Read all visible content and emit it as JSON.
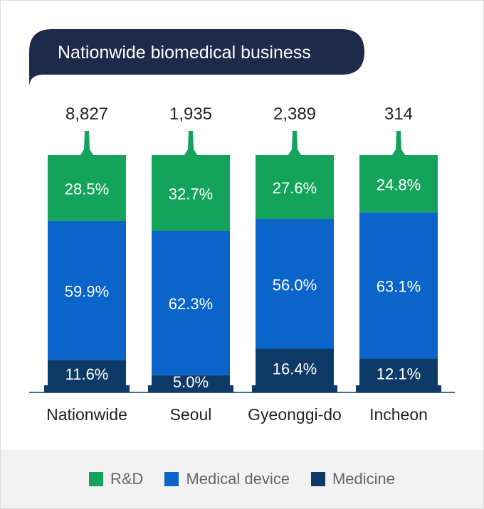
{
  "colors": {
    "title_bg": "#1d2a4a",
    "title_text": "#ffffff",
    "rd": "#14a35b",
    "device": "#0a64c9",
    "medicine": "#0d3a66",
    "axis": "#0d3a66",
    "label_dark": "#222222",
    "label_light": "#ffffff"
  },
  "legend": [
    {
      "name": "R&D",
      "color": "#14a35b"
    },
    {
      "name": "Medical device",
      "color": "#0a64c9"
    },
    {
      "name": "Medicine",
      "color": "#0d3a66"
    }
  ],
  "chart_data": {
    "type": "bar",
    "stacked": true,
    "normalized": true,
    "title": "Nationwide biomedical business",
    "categories": [
      "Nationwide",
      "Seoul",
      "Gyeonggi-do",
      "Incheon"
    ],
    "totals": [
      "8,827",
      "1,935",
      "2,389",
      "314"
    ],
    "series": [
      {
        "name": "Medicine",
        "values": [
          11.6,
          5.0,
          16.4,
          12.1
        ],
        "labels": [
          "11.6%",
          "5.0%",
          "16.4%",
          "12.1%"
        ]
      },
      {
        "name": "Medical device",
        "values": [
          59.9,
          62.3,
          56.0,
          63.1
        ],
        "labels": [
          "59.9%",
          "62.3%",
          "56.0%",
          "63.1%"
        ]
      },
      {
        "name": "R&D",
        "values": [
          28.5,
          32.7,
          27.6,
          24.8
        ],
        "labels": [
          "28.5%",
          "32.7%",
          "27.6%",
          "24.8%"
        ]
      }
    ],
    "legend_position": "bottom",
    "grid": false
  }
}
